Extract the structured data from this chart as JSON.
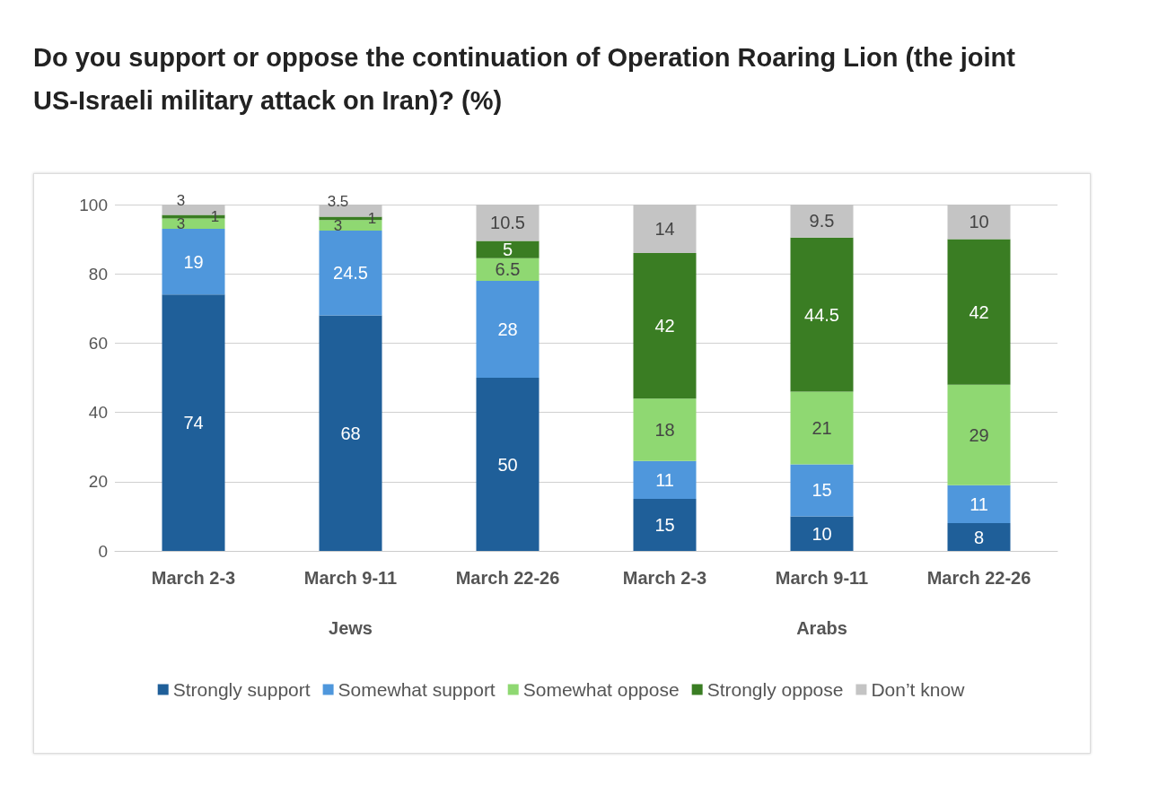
{
  "chart_data": {
    "type": "bar",
    "stacked": true,
    "title": "Do you support or oppose the continuation of Operation Roaring Lion (the joint US-Israeli military attack on Iran)? (%)",
    "categories": [
      "March 2-3",
      "March 9-11",
      "March 22-26",
      "March 2-3",
      "March 9-11",
      "March 22-26"
    ],
    "annotations": [
      "Jews",
      "Arabs"
    ],
    "series": [
      {
        "name": "Strongly support",
        "color": "#1f5f99",
        "values": [
          74,
          68,
          50,
          15,
          10,
          8
        ]
      },
      {
        "name": "Somewhat support",
        "color": "#4f97dc",
        "values": [
          19,
          24.5,
          28,
          11,
          15,
          11
        ]
      },
      {
        "name": "Somewhat oppose",
        "color": "#8fd872",
        "values": [
          3,
          3,
          6.5,
          18,
          21,
          29
        ]
      },
      {
        "name": "Strongly oppose",
        "color": "#3a7d23",
        "values": [
          1,
          1,
          5,
          42,
          44.5,
          42
        ]
      },
      {
        "name": "Don’t know",
        "color": "#c4c4c4",
        "values": [
          3,
          3.5,
          10.5,
          14,
          9.5,
          10
        ]
      }
    ],
    "ylim": [
      0,
      100
    ],
    "yticks": [
      0,
      20,
      40,
      60,
      80,
      100
    ],
    "grid": "y",
    "legend": "bottom",
    "data_labels": true
  }
}
